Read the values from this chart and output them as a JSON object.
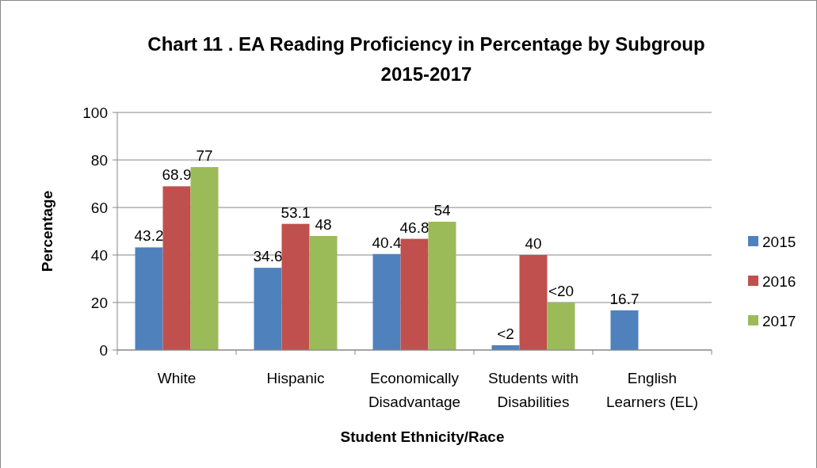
{
  "chart_data": {
    "type": "bar",
    "title": "Chart 11 . EA Reading Proficiency in Percentage by Subgroup 2015-2017",
    "xlabel": "Student Ethnicity/Race",
    "ylabel": "Percentage",
    "categories": [
      "White",
      "Hispanic",
      "Economically Disadvantage",
      "Students with Disabilities",
      "English Learners (EL)"
    ],
    "series": [
      {
        "name": "2015",
        "color": "#4f81bd",
        "values": [
          43.2,
          34.6,
          40.4,
          2,
          16.7
        ],
        "value_labels": [
          "43.2",
          "34.6",
          "40.4",
          "<2",
          "16.7"
        ]
      },
      {
        "name": "2016",
        "color": "#c0504d",
        "values": [
          68.9,
          53.1,
          46.8,
          40,
          null
        ],
        "value_labels": [
          "68.9",
          "53.1",
          "46.8",
          "40",
          null
        ]
      },
      {
        "name": "2017",
        "color": "#9bbb59",
        "values": [
          77,
          48,
          54,
          20,
          null
        ],
        "value_labels": [
          "77",
          "48",
          "54",
          "<20",
          null
        ]
      }
    ],
    "ylim": [
      0,
      100
    ],
    "yticks": [
      0,
      20,
      40,
      60,
      80,
      100
    ],
    "grid": "y",
    "legend": "right"
  }
}
